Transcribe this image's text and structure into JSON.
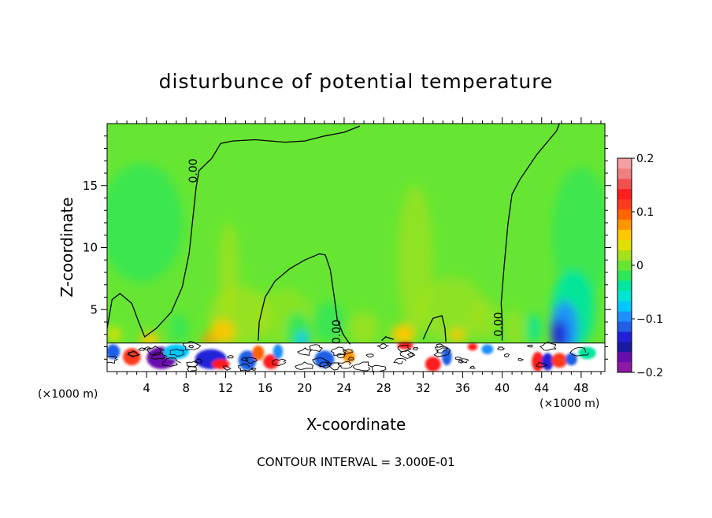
{
  "chart_data": {
    "type": "heatmap",
    "title": "disturbunce of potential temperature",
    "xlabel": "X-coordinate",
    "ylabel": "Z-coordinate",
    "x_unit_left": "(×1000 m)",
    "x_unit_right": "(×1000 m)",
    "xlim": [
      0,
      50.4
    ],
    "ylim": [
      0,
      20
    ],
    "x_ticks": [
      4,
      8,
      12,
      16,
      20,
      24,
      28,
      32,
      36,
      40,
      44,
      48
    ],
    "y_ticks": [
      5,
      10,
      15
    ],
    "colorbar": {
      "min": -0.2,
      "max": 0.2,
      "tick_values": [
        0.2,
        0.1,
        0,
        -0.1,
        -0.2
      ],
      "tick_labels": [
        "0.2",
        "0.1",
        "0",
        "−0.1",
        "−0.2"
      ],
      "colors": [
        "#8c1aa6",
        "#6a0dad",
        "#1a1aa0",
        "#2020d8",
        "#1f5fe6",
        "#1e90ff",
        "#00c8ff",
        "#00e6d2",
        "#00e6a0",
        "#2ee65a",
        "#66e632",
        "#a6e01a",
        "#e0e000",
        "#ffc800",
        "#ff9600",
        "#ff6400",
        "#ff3a1e",
        "#ff1e1e",
        "#f05050",
        "#f08080",
        "#f4a0a0"
      ]
    },
    "contour_labels": [
      {
        "text": "0.00",
        "x": 9.1,
        "z": 16.2
      },
      {
        "text": "0.00",
        "x": 23.6,
        "z": 3.2
      },
      {
        "text": "0.00",
        "x": 40.0,
        "z": 3.8
      }
    ],
    "zero_contours": [
      {
        "name": "main",
        "points": [
          [
            0,
            3.5
          ],
          [
            0.5,
            5.8
          ],
          [
            1.3,
            6.3
          ],
          [
            2.5,
            5.5
          ],
          [
            3.2,
            4
          ],
          [
            3.8,
            2.8
          ],
          [
            5,
            3.5
          ],
          [
            6.5,
            4.8
          ],
          [
            7.6,
            6.8
          ],
          [
            8.3,
            9.5
          ],
          [
            8.7,
            12.5
          ],
          [
            9,
            14.8
          ],
          [
            9.3,
            16.2
          ],
          [
            10.6,
            17.2
          ],
          [
            11.5,
            18.4
          ],
          [
            12.7,
            18.6
          ],
          [
            15,
            18.7
          ],
          [
            18,
            18.5
          ],
          [
            20,
            18.6
          ],
          [
            22,
            19
          ],
          [
            24,
            19.3
          ],
          [
            25.6,
            19.8
          ]
        ]
      },
      {
        "name": "right",
        "points": [
          [
            40,
            2.5
          ],
          [
            40,
            4.1
          ],
          [
            39.9,
            5.5
          ],
          [
            40.2,
            8.5
          ],
          [
            40.6,
            12
          ],
          [
            41,
            14.3
          ],
          [
            41.8,
            15.5
          ],
          [
            43.5,
            17.5
          ],
          [
            45.5,
            19.4
          ],
          [
            45.8,
            20
          ]
        ]
      },
      {
        "name": "hump1",
        "points": [
          [
            15.3,
            2.5
          ],
          [
            15.4,
            4
          ],
          [
            16,
            6
          ],
          [
            17,
            7.3
          ],
          [
            18.5,
            8.3
          ],
          [
            20,
            9
          ],
          [
            21.5,
            9.5
          ],
          [
            22.1,
            9.4
          ],
          [
            22.6,
            8.2
          ],
          [
            23,
            6
          ],
          [
            23.3,
            4.2
          ],
          [
            23.9,
            3
          ],
          [
            24.6,
            2.2
          ]
        ]
      },
      {
        "name": "hump2",
        "points": [
          [
            32,
            2.6
          ],
          [
            32.5,
            3.5
          ],
          [
            33,
            4.3
          ],
          [
            33.9,
            4.5
          ],
          [
            34.2,
            3.5
          ],
          [
            34.3,
            2.4
          ]
        ]
      },
      {
        "name": "hump3",
        "points": [
          [
            27.8,
            2.5
          ],
          [
            28.2,
            2.8
          ],
          [
            29,
            2.6
          ]
        ]
      }
    ],
    "blobs": [
      {
        "x": 3.5,
        "z": 12,
        "rx": 4.2,
        "rz": 4.8,
        "value": -0.03,
        "opacity": 0.75
      },
      {
        "x": 48,
        "z": 11,
        "rx": 3.0,
        "rz": 5.5,
        "value": -0.03,
        "opacity": 0.7
      },
      {
        "x": 47.2,
        "z": 5,
        "rx": 2.2,
        "rz": 3.2,
        "value": -0.05,
        "opacity": 0.9
      },
      {
        "x": 46.3,
        "z": 3.5,
        "rx": 1.4,
        "rz": 2.2,
        "value": -0.1,
        "opacity": 0.95
      },
      {
        "x": 45.8,
        "z": 3,
        "rx": 0.8,
        "rz": 1.2,
        "value": -0.15,
        "opacity": 1
      },
      {
        "x": 43.2,
        "z": 3.5,
        "rx": 0.6,
        "rz": 1.2,
        "value": -0.04,
        "opacity": 0.9
      },
      {
        "x": 34.8,
        "z": 5,
        "rx": 3.5,
        "rz": 2.6,
        "value": 0.01,
        "opacity": 0.6
      },
      {
        "x": 31.2,
        "z": 9,
        "rx": 1.8,
        "rz": 6.0,
        "value": 0.02,
        "opacity": 0.65
      },
      {
        "x": 12.3,
        "z": 8,
        "rx": 1.0,
        "rz": 4.0,
        "value": 0.02,
        "opacity": 0.7
      },
      {
        "x": 13.5,
        "z": 4.5,
        "rx": 3.2,
        "rz": 2.4,
        "value": 0.02,
        "opacity": 0.7
      },
      {
        "x": 11.7,
        "z": 3.2,
        "rx": 1.3,
        "rz": 1.0,
        "value": 0.06,
        "opacity": 0.9
      },
      {
        "x": 10.3,
        "z": 2.6,
        "rx": 0.7,
        "rz": 0.4,
        "value": 0.08,
        "opacity": 1
      },
      {
        "x": 18,
        "z": 4.5,
        "rx": 2.8,
        "rz": 2.2,
        "value": 0.01,
        "opacity": 0.5
      },
      {
        "x": 19.3,
        "z": 3.2,
        "rx": 1.2,
        "rz": 1.6,
        "value": -0.03,
        "opacity": 0.9
      },
      {
        "x": 19.8,
        "z": 2.6,
        "rx": 0.6,
        "rz": 0.6,
        "value": -0.08,
        "opacity": 1
      },
      {
        "x": 22.5,
        "z": 4,
        "rx": 1.6,
        "rz": 1.6,
        "value": -0.02,
        "opacity": 0.8
      },
      {
        "x": 30,
        "z": 3,
        "rx": 1.2,
        "rz": 0.8,
        "value": 0.06,
        "opacity": 1
      },
      {
        "x": 35.5,
        "z": 2.9,
        "rx": 0.8,
        "rz": 0.5,
        "value": 0.06,
        "opacity": 1
      },
      {
        "x": 4.3,
        "z": 2.6,
        "rx": 1.0,
        "rz": 0.5,
        "value": 0.06,
        "opacity": 1
      },
      {
        "x": 0.7,
        "z": 3.0,
        "rx": 0.7,
        "rz": 0.6,
        "value": 0.04,
        "opacity": 1
      },
      {
        "x": 7.3,
        "z": 3.5,
        "rx": 0.9,
        "rz": 1.2,
        "value": -0.02,
        "opacity": 0.8
      },
      {
        "x": 26,
        "z": 3.5,
        "rx": 1.5,
        "rz": 1.3,
        "value": 0.02,
        "opacity": 0.7
      },
      {
        "x": 38.2,
        "z": 4.2,
        "rx": 1.5,
        "rz": 1.6,
        "value": 0.01,
        "opacity": 0.6
      },
      {
        "x": 41.2,
        "z": 3.5,
        "rx": 0.9,
        "rz": 1.5,
        "value": 0.02,
        "opacity": 0.6
      }
    ],
    "surface_band": {
      "z_top": 2.3,
      "patches": [
        {
          "x": 0.6,
          "z": 1.6,
          "rx": 0.7,
          "rz": 0.6,
          "value": -0.12
        },
        {
          "x": 2.5,
          "z": 1.2,
          "rx": 0.9,
          "rz": 0.7,
          "value": 0.12
        },
        {
          "x": 5.5,
          "z": 1.1,
          "rx": 1.5,
          "rz": 0.9,
          "value": -0.18
        },
        {
          "x": 7.0,
          "z": 1.6,
          "rx": 1.3,
          "rz": 0.6,
          "value": -0.08
        },
        {
          "x": 10.5,
          "z": 1.0,
          "rx": 1.6,
          "rz": 0.8,
          "value": -0.15
        },
        {
          "x": 11.5,
          "z": 0.6,
          "rx": 0.9,
          "rz": 0.4,
          "value": 0.14
        },
        {
          "x": 14.2,
          "z": 0.9,
          "rx": 0.9,
          "rz": 0.8,
          "value": -0.12
        },
        {
          "x": 15.3,
          "z": 1.5,
          "rx": 0.6,
          "rz": 0.6,
          "value": 0.1
        },
        {
          "x": 16.6,
          "z": 0.8,
          "rx": 0.8,
          "rz": 0.6,
          "value": 0.15
        },
        {
          "x": 17.3,
          "z": 1.6,
          "rx": 0.5,
          "rz": 0.6,
          "value": -0.1
        },
        {
          "x": 22.0,
          "z": 1.0,
          "rx": 1.0,
          "rz": 0.7,
          "value": -0.12
        },
        {
          "x": 24.5,
          "z": 1.2,
          "rx": 0.6,
          "rz": 0.5,
          "value": 0.08
        },
        {
          "x": 30.2,
          "z": 2.1,
          "rx": 0.8,
          "rz": 0.3,
          "value": 0.13
        },
        {
          "x": 33.0,
          "z": 0.6,
          "rx": 0.8,
          "rz": 0.6,
          "value": 0.15
        },
        {
          "x": 34.4,
          "z": 1.2,
          "rx": 0.5,
          "rz": 0.7,
          "value": -0.12
        },
        {
          "x": 37.0,
          "z": 2.0,
          "rx": 0.5,
          "rz": 0.3,
          "value": 0.14
        },
        {
          "x": 38.5,
          "z": 1.8,
          "rx": 0.6,
          "rz": 0.4,
          "value": -0.1
        },
        {
          "x": 43.6,
          "z": 0.8,
          "rx": 0.6,
          "rz": 0.8,
          "value": 0.15
        },
        {
          "x": 44.6,
          "z": 0.8,
          "rx": 0.6,
          "rz": 0.7,
          "value": -0.15
        },
        {
          "x": 45.8,
          "z": 0.9,
          "rx": 0.8,
          "rz": 0.6,
          "value": 0.12
        },
        {
          "x": 47.0,
          "z": 1.0,
          "rx": 0.6,
          "rz": 0.5,
          "value": -0.12
        },
        {
          "x": 48.6,
          "z": 1.5,
          "rx": 0.9,
          "rz": 0.5,
          "value": -0.05
        }
      ]
    }
  },
  "footer": {
    "contour_interval": "CONTOUR INTERVAL = 3.000E-01"
  }
}
